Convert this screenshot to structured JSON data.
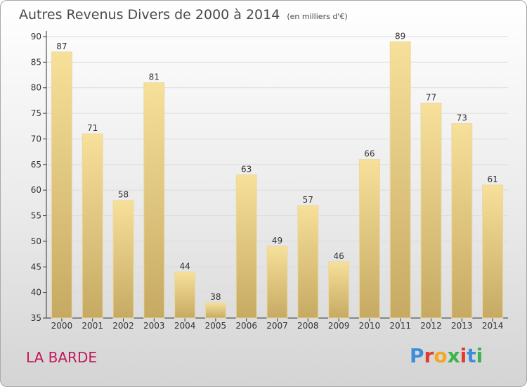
{
  "title": "Autres Revenus Divers de 2000 à 2014",
  "unit": "(en milliers d'€)",
  "commune": "LA BARDE",
  "logo": {
    "letters": [
      "P",
      "r",
      "o",
      "x",
      "i",
      "t",
      "i"
    ],
    "colors": [
      "#3b8fd9",
      "#e23b2e",
      "#f5a623",
      "#3cb44b",
      "#e23b2e",
      "#3b8fd9",
      "#3cb44b"
    ]
  },
  "chart_data": {
    "type": "bar",
    "categories": [
      "2000",
      "2001",
      "2002",
      "2003",
      "2004",
      "2005",
      "2006",
      "2007",
      "2008",
      "2009",
      "2010",
      "2011",
      "2012",
      "2013",
      "2014"
    ],
    "values": [
      87,
      71,
      58,
      81,
      44,
      38,
      63,
      49,
      57,
      46,
      66,
      89,
      77,
      73,
      61
    ],
    "data_labels": [
      "87",
      "71",
      "58",
      "81",
      "44",
      "38",
      "63",
      "49",
      "57",
      "46",
      "66",
      "89",
      "77",
      "73",
      "61"
    ],
    "ylim": [
      35,
      90
    ],
    "yticks": [
      "35",
      "40",
      "45",
      "50",
      "55",
      "60",
      "65",
      "70",
      "75",
      "80",
      "85",
      "90"
    ],
    "grid": true,
    "bar_color_light": "#f7e09a",
    "bar_color_dark": "#c6aa63"
  }
}
